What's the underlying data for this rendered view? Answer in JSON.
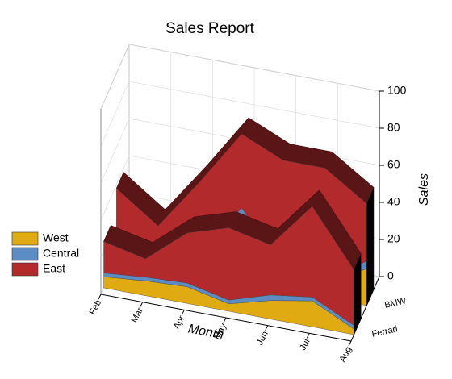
{
  "chart_data": {
    "type": "area3d",
    "title": "Sales Report",
    "x_label": "Month",
    "y_label": "Sales",
    "categories": [
      "Feb",
      "Mar",
      "Apr",
      "May",
      "Jun",
      "Jul",
      "Aug"
    ],
    "depth_categories": [
      "BMW",
      "Ferrari"
    ],
    "series": [
      {
        "name": "West",
        "color": "#e0aa12",
        "values": [
          [
            12,
            5,
            5,
            15,
            8,
            6,
            20
          ],
          [
            6,
            8,
            9,
            4,
            10,
            14,
            3
          ]
        ]
      },
      {
        "name": "Central",
        "color": "#5b8cc4",
        "values": [
          [
            4,
            2,
            5,
            25,
            5,
            3,
            4
          ],
          [
            2,
            2,
            2,
            2,
            3,
            2,
            2
          ]
        ]
      },
      {
        "name": "East",
        "color": "#b22a2c",
        "values": [
          [
            22,
            15,
            40,
            40,
            57,
            61,
            31
          ],
          [
            17,
            10,
            27,
            39,
            27,
            49,
            30
          ]
        ]
      }
    ],
    "ylim": [
      0,
      100
    ],
    "yticks": [
      0,
      20,
      40,
      60,
      80,
      100
    ],
    "grid": true
  }
}
